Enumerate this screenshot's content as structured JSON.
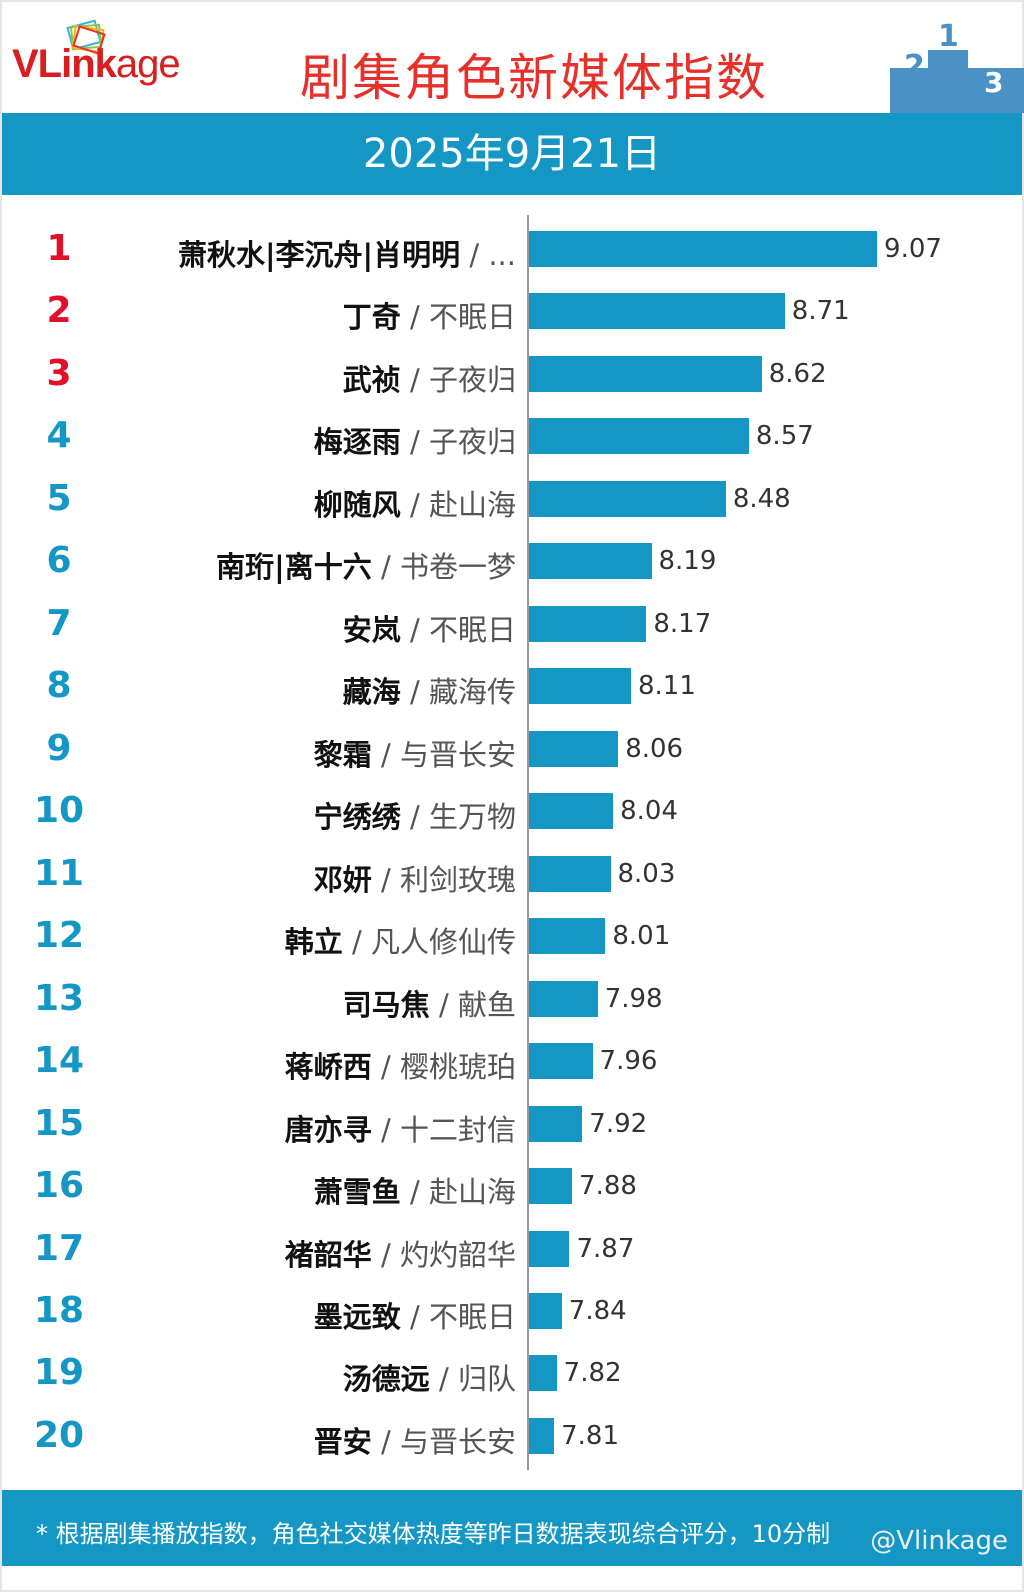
{
  "header": {
    "logo_bold": "VLink",
    "logo_light": "age",
    "title": "剧集角色新媒体指数",
    "date": "2025年9月21日"
  },
  "footer": {
    "note": "* 根据剧集播放指数，角色社交媒体热度等昨日数据表现综合评分，10分制",
    "watermark": "@Vlinkage"
  },
  "colors": {
    "top3": "#e0102a",
    "rank": "#1597c5",
    "bar": "#1597c5"
  },
  "chart_data": {
    "type": "bar",
    "orientation": "horizontal",
    "title": "剧集角色新媒体指数",
    "subtitle": "2025年9月21日",
    "items": [
      {
        "rank": "1",
        "name": "萧秋水|李沉舟|肖明明",
        "show": "...",
        "value": 9.07
      },
      {
        "rank": "2",
        "name": "丁奇",
        "show": "不眠日",
        "value": 8.71
      },
      {
        "rank": "3",
        "name": "武祯",
        "show": "子夜归",
        "value": 8.62
      },
      {
        "rank": "4",
        "name": "梅逐雨",
        "show": "子夜归",
        "value": 8.57
      },
      {
        "rank": "5",
        "name": "柳随风",
        "show": "赴山海",
        "value": 8.48
      },
      {
        "rank": "6",
        "name": "南珩|离十六",
        "show": "书卷一梦",
        "value": 8.19
      },
      {
        "rank": "7",
        "name": "安岚",
        "show": "不眠日",
        "value": 8.17
      },
      {
        "rank": "8",
        "name": "藏海",
        "show": "藏海传",
        "value": 8.11
      },
      {
        "rank": "9",
        "name": "黎霜",
        "show": "与晋长安",
        "value": 8.06
      },
      {
        "rank": "10",
        "name": "宁绣绣",
        "show": "生万物",
        "value": 8.04
      },
      {
        "rank": "11",
        "name": "邓妍",
        "show": "利剑玫瑰",
        "value": 8.03
      },
      {
        "rank": "12",
        "name": "韩立",
        "show": "凡人修仙传",
        "value": 8.01
      },
      {
        "rank": "13",
        "name": "司马焦",
        "show": "献鱼",
        "value": 7.98
      },
      {
        "rank": "14",
        "name": "蒋峤西",
        "show": "樱桃琥珀",
        "value": 7.96
      },
      {
        "rank": "15",
        "name": "唐亦寻",
        "show": "十二封信",
        "value": 7.92
      },
      {
        "rank": "16",
        "name": "萧雪鱼",
        "show": "赴山海",
        "value": 7.88
      },
      {
        "rank": "17",
        "name": "褚韶华",
        "show": "灼灼韶华",
        "value": 7.87
      },
      {
        "rank": "18",
        "name": "墨远致",
        "show": "不眠日",
        "value": 7.84
      },
      {
        "rank": "19",
        "name": "汤德远",
        "show": "归队",
        "value": 7.82
      },
      {
        "rank": "20",
        "name": "晋安",
        "show": "与晋长安",
        "value": 7.81
      }
    ],
    "separator": " / "
  }
}
